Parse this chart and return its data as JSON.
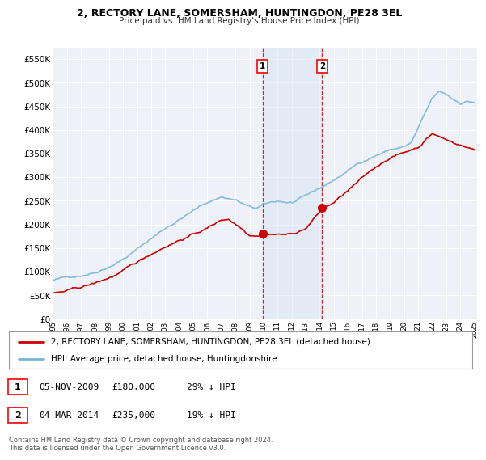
{
  "title": "2, RECTORY LANE, SOMERSHAM, HUNTINGDON, PE28 3EL",
  "subtitle": "Price paid vs. HM Land Registry's House Price Index (HPI)",
  "background_color": "#ffffff",
  "plot_bg_color": "#eef2f8",
  "grid_color": "#ffffff",
  "ylim": [
    0,
    575000
  ],
  "yticks": [
    0,
    50000,
    100000,
    150000,
    200000,
    250000,
    300000,
    350000,
    400000,
    450000,
    500000,
    550000
  ],
  "ytick_labels": [
    "£0",
    "£50K",
    "£100K",
    "£150K",
    "£200K",
    "£250K",
    "£300K",
    "£350K",
    "£400K",
    "£450K",
    "£500K",
    "£550K"
  ],
  "hpi_color": "#7ab4d8",
  "price_color": "#cc0000",
  "purchase1_year": 2009.917,
  "purchase1_price": 180000,
  "purchase2_year": 2014.167,
  "purchase2_price": 235000,
  "legend_line1": "2, RECTORY LANE, SOMERSHAM, HUNTINGDON, PE28 3EL (detached house)",
  "legend_line2": "HPI: Average price, detached house, Huntingdonshire",
  "table_row1": [
    "1",
    "05-NOV-2009",
    "£180,000",
    "29% ↓ HPI"
  ],
  "table_row2": [
    "2",
    "04-MAR-2014",
    "£235,000",
    "19% ↓ HPI"
  ],
  "footer": "Contains HM Land Registry data © Crown copyright and database right 2024.\nThis data is licensed under the Open Government Licence v3.0.",
  "span_color": "#ddeeff",
  "xstart": 1995,
  "xend": 2025
}
